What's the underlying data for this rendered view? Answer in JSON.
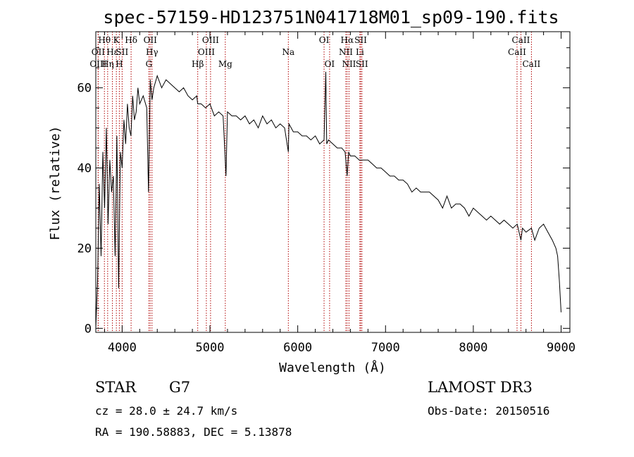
{
  "chart_data": {
    "type": "line",
    "title": "spec-57159-HD123751N041718M01_sp09-190.fits",
    "xlabel": "Wavelength (Å)",
    "ylabel": "Flux (relative)",
    "xlim": [
      3700,
      9100
    ],
    "ylim": [
      -1,
      74
    ],
    "xticks": [
      4000,
      5000,
      6000,
      7000,
      8000,
      9000
    ],
    "yticks": [
      0,
      20,
      40,
      60
    ],
    "series": [
      {
        "name": "flux",
        "x": [
          3700,
          3720,
          3740,
          3760,
          3780,
          3800,
          3820,
          3840,
          3860,
          3880,
          3900,
          3920,
          3940,
          3960,
          3980,
          4000,
          4020,
          4040,
          4060,
          4080,
          4100,
          4120,
          4140,
          4160,
          4180,
          4200,
          4240,
          4280,
          4300,
          4320,
          4340,
          4360,
          4400,
          4450,
          4500,
          4550,
          4600,
          4650,
          4700,
          4750,
          4800,
          4850,
          4860,
          4900,
          4950,
          5000,
          5050,
          5100,
          5150,
          5170,
          5183,
          5200,
          5250,
          5300,
          5350,
          5400,
          5450,
          5500,
          5550,
          5600,
          5650,
          5700,
          5750,
          5800,
          5850,
          5893,
          5900,
          5950,
          6000,
          6050,
          6100,
          6150,
          6200,
          6250,
          6300,
          6320,
          6330,
          6350,
          6400,
          6450,
          6500,
          6540,
          6563,
          6580,
          6600,
          6650,
          6700,
          6750,
          6800,
          6850,
          6900,
          6950,
          7000,
          7050,
          7100,
          7150,
          7200,
          7250,
          7300,
          7350,
          7400,
          7450,
          7500,
          7550,
          7600,
          7650,
          7700,
          7750,
          7800,
          7850,
          7900,
          7950,
          8000,
          8050,
          8100,
          8150,
          8200,
          8250,
          8300,
          8350,
          8400,
          8450,
          8500,
          8542,
          8560,
          8600,
          8662,
          8700,
          8750,
          8800,
          8850,
          8900,
          8940,
          8960,
          8980,
          9000
        ],
        "values": [
          0,
          12,
          36,
          18,
          44,
          30,
          50,
          26,
          42,
          34,
          38,
          18,
          48,
          10,
          44,
          40,
          52,
          46,
          56,
          50,
          48,
          58,
          52,
          54,
          60,
          56,
          58,
          55,
          34,
          62,
          57,
          60,
          63,
          60,
          62,
          61,
          60,
          59,
          60,
          58,
          57,
          58,
          56,
          56,
          55,
          56,
          53,
          54,
          53,
          44,
          38,
          54,
          53,
          53,
          52,
          53,
          51,
          52,
          50,
          53,
          51,
          52,
          50,
          51,
          50,
          44,
          51,
          49,
          49,
          48,
          48,
          47,
          48,
          46,
          47,
          64,
          46,
          47,
          46,
          45,
          45,
          44,
          38,
          44,
          43,
          43,
          42,
          42,
          42,
          41,
          40,
          40,
          39,
          38,
          38,
          37,
          37,
          36,
          34,
          35,
          34,
          34,
          34,
          33,
          32,
          30,
          33,
          30,
          31,
          31,
          30,
          28,
          30,
          29,
          28,
          27,
          28,
          27,
          26,
          27,
          26,
          25,
          26,
          22,
          25,
          24,
          25,
          22,
          25,
          26,
          24,
          22,
          20,
          18,
          12,
          4
        ]
      }
    ],
    "spectral_lines": [
      {
        "label": "Hθ",
        "wavelength": 3798,
        "row": 0
      },
      {
        "label": "OII",
        "wavelength": 3727,
        "row": 1
      },
      {
        "label": "OIII",
        "wavelength": 3727,
        "row": 2
      },
      {
        "label": "Hη",
        "wavelength": 3835,
        "row": 2
      },
      {
        "label": "Hε",
        "wavelength": 3889,
        "row": 1
      },
      {
        "label": "K",
        "wavelength": 3934,
        "row": 0
      },
      {
        "label": "H",
        "wavelength": 3968,
        "row": 2
      },
      {
        "label": "SII",
        "wavelength": 4000,
        "row": 1
      },
      {
        "label": "Hδ",
        "wavelength": 4102,
        "row": 0
      },
      {
        "label": "OII",
        "wavelength": 4320,
        "row": 0
      },
      {
        "label": "Hγ",
        "wavelength": 4340,
        "row": 1
      },
      {
        "label": "G",
        "wavelength": 4305,
        "row": 2
      },
      {
        "label": "Hβ",
        "wavelength": 4861,
        "row": 2
      },
      {
        "label": "OIII",
        "wavelength": 5007,
        "row": 0
      },
      {
        "label": "OIII",
        "wavelength": 4959,
        "row": 1
      },
      {
        "label": "Mg",
        "wavelength": 5175,
        "row": 2
      },
      {
        "label": "Na",
        "wavelength": 5893,
        "row": 1
      },
      {
        "label": "OI",
        "wavelength": 6300,
        "row": 0
      },
      {
        "label": "OI",
        "wavelength": 6363,
        "row": 2
      },
      {
        "label": "Hα",
        "wavelength": 6563,
        "row": 0
      },
      {
        "label": "NII",
        "wavelength": 6548,
        "row": 1
      },
      {
        "label": "NII",
        "wavelength": 6584,
        "row": 2
      },
      {
        "label": "SII",
        "wavelength": 6717,
        "row": 0
      },
      {
        "label": "Li",
        "wavelength": 6708,
        "row": 1
      },
      {
        "label": "SII",
        "wavelength": 6731,
        "row": 2
      },
      {
        "label": "CaII",
        "wavelength": 8542,
        "row": 0
      },
      {
        "label": "CaII",
        "wavelength": 8498,
        "row": 1
      },
      {
        "label": "CaII",
        "wavelength": 8662,
        "row": 2
      }
    ]
  },
  "info": {
    "object_class": "STAR",
    "subclass": "G7",
    "survey": "LAMOST DR3",
    "redshift_text": "cz = 28.0 ± 24.7 km/s",
    "obs_date": "Obs-Date: 20150516",
    "coords_text": "RA = 190.58883, DEC =    5.13878"
  },
  "colors": {
    "spectrum": "#000000",
    "line_marker": "#b00000",
    "axes": "#000000"
  }
}
